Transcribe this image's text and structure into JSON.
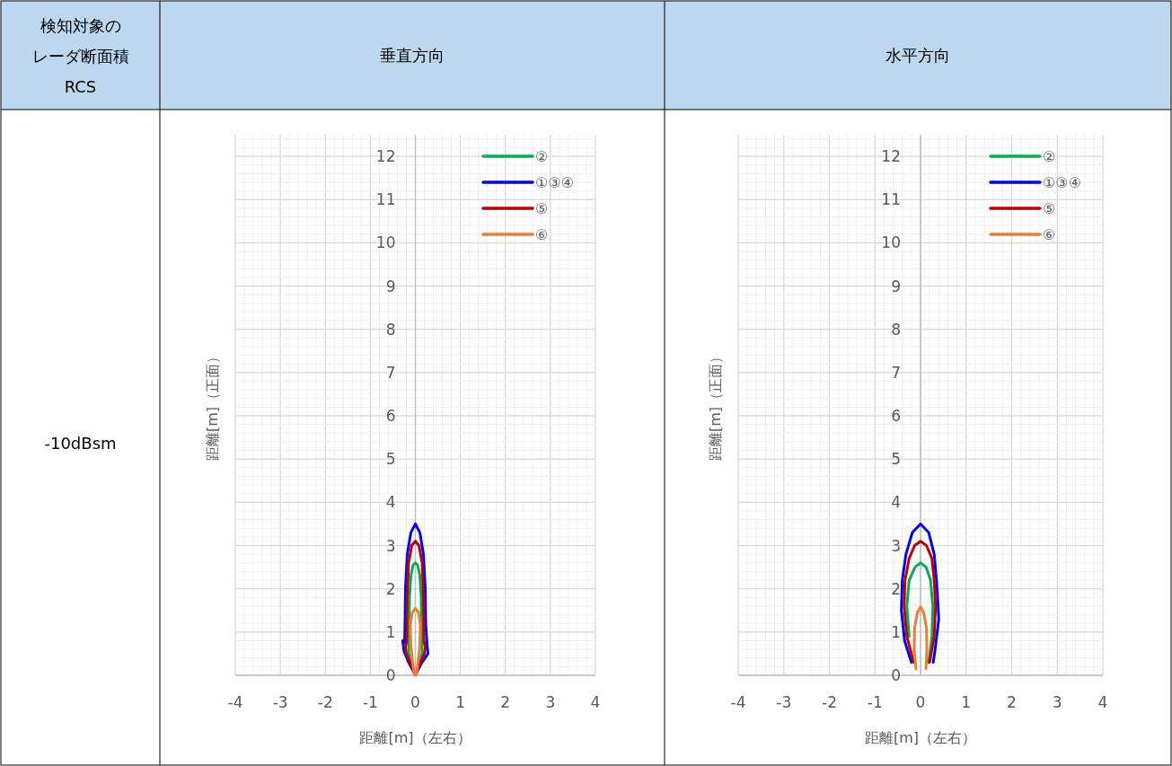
{
  "chart_data": [
    {
      "type": "line",
      "title": "垂直方向",
      "xlabel": "距離[m]（左右）",
      "ylabel": "距離[m]（正面）",
      "annotations": [
        "検知対象の",
        "レーダ断面積",
        "RCS",
        "-10dBsm"
      ],
      "xlim": [
        -4,
        4
      ],
      "ylim": [
        0,
        12.5
      ],
      "xticks": [
        -4,
        -3,
        -2,
        -1,
        0,
        1,
        2,
        3,
        4
      ],
      "yticks": [
        0,
        1,
        2,
        3,
        4,
        5,
        6,
        7,
        8,
        9,
        10,
        11,
        12
      ],
      "grid": true,
      "legend": "top right",
      "series": [
        {
          "name": "②",
          "color": "#00b050",
          "x": [
            -0.09,
            -0.15,
            -0.14,
            -0.13,
            -0.1,
            -0.05,
            0,
            0.05,
            0.1,
            0.13,
            0.14,
            0.15,
            0.09
          ],
          "values": [
            0.3,
            0.5,
            1.0,
            1.8,
            2.3,
            2.55,
            2.6,
            2.55,
            2.3,
            1.8,
            1.0,
            0.5,
            0.3
          ]
        },
        {
          "name": "①③④",
          "color": "#0000ff",
          "x": [
            -0.02,
            -0.15,
            -0.25,
            -0.28,
            -0.24,
            -0.23,
            -0.22,
            -0.18,
            -0.1,
            0,
            0.1,
            0.18,
            0.22,
            0.23,
            0.26,
            0.28,
            0.15,
            0.02
          ],
          "values": [
            0.05,
            0.3,
            0.55,
            0.8,
            0.75,
            1.2,
            2.0,
            2.8,
            3.3,
            3.5,
            3.3,
            2.8,
            2.0,
            1.2,
            0.7,
            0.5,
            0.3,
            0.05
          ]
        },
        {
          "name": "⑤",
          "color": "#c00000",
          "x": [
            -0.02,
            -0.12,
            -0.2,
            -0.22,
            -0.19,
            -0.18,
            -0.15,
            -0.08,
            0,
            0.08,
            0.15,
            0.18,
            0.19,
            0.22,
            0.2,
            0.12,
            0.02
          ],
          "values": [
            0.05,
            0.3,
            0.5,
            0.65,
            0.8,
            1.8,
            2.6,
            3.0,
            3.1,
            3.0,
            2.6,
            1.8,
            0.8,
            0.65,
            0.5,
            0.3,
            0.05
          ]
        },
        {
          "name": "⑥",
          "color": "#ed7d31",
          "x": [
            -0.02,
            -0.06,
            -0.1,
            -0.11,
            -0.07,
            0,
            0.07,
            0.11,
            0.1,
            0.06,
            0.02
          ],
          "values": [
            0,
            0.3,
            0.7,
            1.2,
            1.45,
            1.55,
            1.45,
            1.2,
            0.7,
            0.3,
            0
          ]
        }
      ]
    },
    {
      "type": "line",
      "title": "水平方向",
      "xlabel": "距離[m]（左右）",
      "ylabel": "距離[m]（正面）",
      "xlim": [
        -4,
        4
      ],
      "ylim": [
        0,
        12.5
      ],
      "xticks": [
        -4,
        -3,
        -2,
        -1,
        0,
        1,
        2,
        3,
        4
      ],
      "yticks": [
        0,
        1,
        2,
        3,
        4,
        5,
        6,
        7,
        8,
        9,
        10,
        11,
        12
      ],
      "grid": true,
      "legend": "top right",
      "series": [
        {
          "name": "②",
          "color": "#00b050",
          "x": [
            -0.25,
            -0.3,
            -0.25,
            -0.12,
            0,
            0.12,
            0.22,
            0.27,
            0.25,
            0.18
          ],
          "values": [
            0.9,
            1.6,
            2.2,
            2.5,
            2.6,
            2.5,
            2.2,
            1.6,
            0.9,
            0.3
          ]
        },
        {
          "name": "①③④",
          "color": "#0000ff",
          "x": [
            -0.2,
            -0.35,
            -0.42,
            -0.4,
            -0.32,
            -0.18,
            0,
            0.18,
            0.3,
            0.35,
            0.38,
            0.4,
            0.32,
            0.28
          ],
          "values": [
            0.3,
            0.8,
            1.5,
            2.2,
            2.8,
            3.3,
            3.5,
            3.3,
            2.8,
            2.2,
            1.7,
            1.3,
            0.6,
            0.3
          ]
        },
        {
          "name": "⑤",
          "color": "#c00000",
          "x": [
            -0.15,
            -0.3,
            -0.36,
            -0.34,
            -0.25,
            -0.13,
            0,
            0.13,
            0.25,
            0.3,
            0.33,
            0.3,
            0.2
          ],
          "values": [
            0.3,
            0.9,
            1.6,
            2.2,
            2.7,
            3.0,
            3.1,
            3.0,
            2.7,
            2.2,
            1.6,
            0.9,
            0.3
          ]
        },
        {
          "name": "⑥",
          "color": "#ed7d31",
          "x": [
            -0.1,
            -0.14,
            -0.13,
            -0.07,
            0,
            0.07,
            0.13,
            0.14,
            0.12
          ],
          "values": [
            0.15,
            0.6,
            1.1,
            1.45,
            1.58,
            1.45,
            1.1,
            0.6,
            0.15
          ]
        }
      ]
    }
  ]
}
